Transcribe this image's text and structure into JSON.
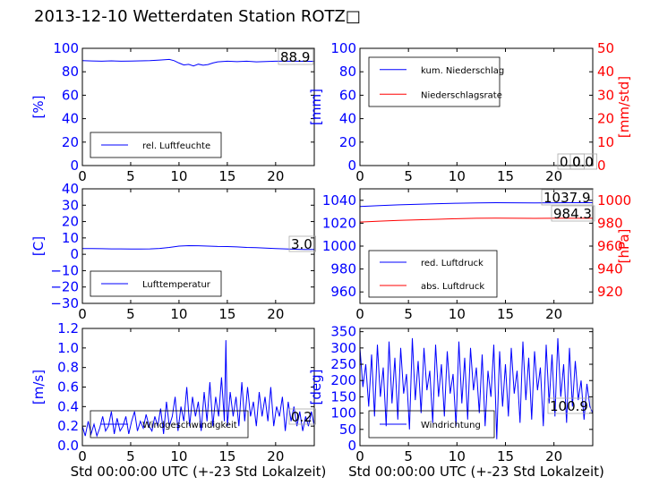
{
  "title": "2013-12-10 Wetterdaten Station ROTZ□",
  "colors": {
    "primary": "#0000ff",
    "secondary": "#ff0000",
    "axis": "#000000"
  },
  "chart_data": [
    {
      "id": "humidity",
      "type": "line",
      "xlim": [
        0,
        24
      ],
      "xticks": [
        0,
        5,
        10,
        15,
        20
      ],
      "ylim": [
        0,
        100
      ],
      "yticks": [
        0,
        20,
        40,
        60,
        80,
        100
      ],
      "ylabel": "[%]",
      "xlabel": "",
      "legend_position": "lower-left",
      "annotations": [
        {
          "text": "88.9",
          "y": 88.9
        }
      ],
      "series": [
        {
          "name": "rel. Luftfeuchte",
          "axis": "left",
          "color": "#0000ff",
          "x": [
            0,
            1,
            2,
            3,
            4,
            5,
            6,
            7,
            8,
            9,
            9.5,
            10,
            10.5,
            11,
            11.5,
            12,
            12.5,
            13,
            13.5,
            14,
            15,
            16,
            17,
            18,
            19,
            20,
            21,
            22,
            23,
            24
          ],
          "y": [
            89.5,
            89.2,
            89.0,
            89.3,
            89.0,
            89.1,
            89.3,
            89.5,
            90.0,
            90.5,
            89.5,
            87.5,
            85.8,
            86.3,
            85.0,
            86.5,
            85.6,
            86.2,
            87.5,
            88.5,
            89.0,
            88.6,
            89.0,
            88.5,
            88.8,
            89.0,
            89.0,
            89.0,
            88.9,
            88.9
          ]
        }
      ]
    },
    {
      "id": "precipitation",
      "type": "line",
      "xlim": [
        0,
        24
      ],
      "xticks": [
        0,
        5,
        10,
        15,
        20
      ],
      "ylim": [
        0,
        100
      ],
      "yticks": [
        0,
        20,
        40,
        60,
        80,
        100
      ],
      "ylabel": "[mm]",
      "y2lim": [
        0,
        50
      ],
      "y2ticks": [
        0,
        10,
        20,
        30,
        40,
        50
      ],
      "y2label": "[mm/std]",
      "legend_position": "upper-left",
      "annotations": [
        {
          "text": "0.0",
          "y": 0
        },
        {
          "text": "0.0",
          "y": 0
        }
      ],
      "series": [
        {
          "name": "kum. Niederschlag",
          "axis": "left",
          "color": "#0000ff",
          "x": [
            0,
            24
          ],
          "y": [
            0,
            0
          ]
        },
        {
          "name": "Niederschlagsrate",
          "axis": "right",
          "color": "#ff0000",
          "x": [
            0,
            24
          ],
          "y": [
            0,
            0
          ]
        }
      ]
    },
    {
      "id": "temperature",
      "type": "line",
      "xlim": [
        0,
        24
      ],
      "xticks": [
        0,
        5,
        10,
        15,
        20
      ],
      "ylim": [
        -30,
        40
      ],
      "yticks": [
        -30,
        -20,
        -10,
        0,
        10,
        20,
        30,
        40
      ],
      "ylabel": "[C]",
      "legend_position": "lower-left",
      "annotations": [
        {
          "text": "3.0",
          "y": 3.0
        }
      ],
      "series": [
        {
          "name": "Lufttemperatur",
          "axis": "left",
          "color": "#0000ff",
          "x": [
            0,
            1,
            2,
            3,
            4,
            5,
            6,
            7,
            8,
            9,
            10,
            11,
            12,
            13,
            14,
            15,
            16,
            17,
            18,
            19,
            20,
            21,
            22,
            23,
            24
          ],
          "y": [
            3.5,
            3.5,
            3.4,
            3.3,
            3.3,
            3.2,
            3.2,
            3.3,
            3.6,
            4.2,
            5.0,
            5.3,
            5.2,
            5.0,
            4.8,
            4.7,
            4.5,
            4.2,
            4.0,
            3.8,
            3.5,
            3.3,
            3.1,
            3.0,
            3.0
          ]
        }
      ]
    },
    {
      "id": "pressure",
      "type": "line",
      "xlim": [
        0,
        24
      ],
      "xticks": [
        0,
        5,
        10,
        15,
        20
      ],
      "ylim": [
        950,
        1050
      ],
      "yticks": [
        960,
        980,
        1000,
        1020,
        1040
      ],
      "ylabel": "",
      "y2lim": [
        910,
        1010
      ],
      "y2ticks": [
        920,
        940,
        960,
        980,
        1000
      ],
      "y2label": "[hPa]",
      "legend_position": "lower-left",
      "annotations": [
        {
          "text": "1037.9",
          "y": 1037.9,
          "axis": "left"
        },
        {
          "text": "984.3",
          "y": 984.3,
          "axis": "right"
        }
      ],
      "series": [
        {
          "name": "red. Luftdruck",
          "axis": "left",
          "color": "#0000ff",
          "x": [
            0,
            2,
            4,
            6,
            8,
            10,
            12,
            14,
            16,
            18,
            20,
            22,
            24
          ],
          "y": [
            1034.5,
            1035.3,
            1036.0,
            1036.6,
            1037.0,
            1037.4,
            1037.7,
            1037.9,
            1037.8,
            1037.7,
            1037.8,
            1037.9,
            1037.9
          ]
        },
        {
          "name": "abs. Luftdruck",
          "axis": "right",
          "color": "#ff0000",
          "x": [
            0,
            2,
            4,
            6,
            8,
            10,
            12,
            14,
            16,
            18,
            20,
            22,
            24
          ],
          "y": [
            981.0,
            981.8,
            982.4,
            983.0,
            983.4,
            983.9,
            984.3,
            984.4,
            984.3,
            984.2,
            984.3,
            984.3,
            984.3
          ]
        }
      ]
    },
    {
      "id": "wind-speed",
      "type": "line",
      "xlim": [
        0,
        24
      ],
      "xticks": [
        0,
        5,
        10,
        15,
        20
      ],
      "ylim": [
        0,
        1.2
      ],
      "yticks": [
        0.0,
        0.2,
        0.4,
        0.6,
        0.8,
        1.0,
        1.2
      ],
      "ylabel": "[m/s]",
      "xlabel": "Std 00:00:00 UTC (+-23 Std Lokalzeit)",
      "legend_position": "lower-left",
      "annotations": [
        {
          "text": "0.2",
          "y": 0.2
        }
      ],
      "series": [
        {
          "name": "Windgeschwindigkeit",
          "axis": "left",
          "color": "#0000ff",
          "x": [
            0,
            0.3,
            0.6,
            0.9,
            1.2,
            1.5,
            1.8,
            2.1,
            2.4,
            2.7,
            3.0,
            3.3,
            3.6,
            3.9,
            4.2,
            4.5,
            4.8,
            5.1,
            5.4,
            5.7,
            6.0,
            6.3,
            6.6,
            6.9,
            7.2,
            7.5,
            7.8,
            8.1,
            8.4,
            8.7,
            9.0,
            9.3,
            9.6,
            9.9,
            10.2,
            10.5,
            10.8,
            11.1,
            11.4,
            11.7,
            12.0,
            12.3,
            12.6,
            12.9,
            13.2,
            13.5,
            13.8,
            14.1,
            14.4,
            14.7,
            14.85,
            15.0,
            15.3,
            15.6,
            15.9,
            16.2,
            16.5,
            16.8,
            17.1,
            17.4,
            17.7,
            18.0,
            18.3,
            18.6,
            18.9,
            19.2,
            19.5,
            19.8,
            20.1,
            20.4,
            20.7,
            21.0,
            21.3,
            21.6,
            21.9,
            22.2,
            22.5,
            22.8,
            23.1,
            23.4,
            23.7,
            24.0
          ],
          "y": [
            0.2,
            0.1,
            0.25,
            0.12,
            0.22,
            0.1,
            0.18,
            0.3,
            0.15,
            0.2,
            0.35,
            0.12,
            0.28,
            0.15,
            0.2,
            0.3,
            0.12,
            0.25,
            0.35,
            0.15,
            0.25,
            0.18,
            0.32,
            0.2,
            0.15,
            0.3,
            0.2,
            0.38,
            0.12,
            0.45,
            0.2,
            0.3,
            0.5,
            0.15,
            0.4,
            0.25,
            0.6,
            0.2,
            0.5,
            0.3,
            0.45,
            0.15,
            0.55,
            0.25,
            0.65,
            0.2,
            0.5,
            0.3,
            0.7,
            0.25,
            1.08,
            0.2,
            0.55,
            0.3,
            0.5,
            0.2,
            0.65,
            0.25,
            0.6,
            0.3,
            0.45,
            0.2,
            0.55,
            0.3,
            0.5,
            0.25,
            0.6,
            0.2,
            0.4,
            0.3,
            0.5,
            0.15,
            0.45,
            0.25,
            0.4,
            0.2,
            0.35,
            0.15,
            0.3,
            0.2,
            0.35,
            0.2
          ]
        }
      ]
    },
    {
      "id": "wind-direction",
      "type": "line",
      "xlim": [
        0,
        24
      ],
      "xticks": [
        0,
        5,
        10,
        15,
        20
      ],
      "ylim": [
        0,
        360
      ],
      "yticks": [
        0,
        50,
        100,
        150,
        200,
        250,
        300,
        350
      ],
      "ylabel": "[deg]",
      "xlabel": "Std 00:00:00 UTC (+-23 Std Lokalzeit)",
      "legend_position": "lower-left",
      "annotations": [
        {
          "text": "100.9",
          "y": 100.9
        }
      ],
      "series": [
        {
          "name": "Windrichtung",
          "axis": "left",
          "color": "#0000ff",
          "x": [
            0,
            0.3,
            0.6,
            0.9,
            1.2,
            1.5,
            1.8,
            2.1,
            2.4,
            2.7,
            3.0,
            3.3,
            3.6,
            3.9,
            4.2,
            4.5,
            4.8,
            5.1,
            5.4,
            5.7,
            6.0,
            6.3,
            6.6,
            6.9,
            7.2,
            7.5,
            7.8,
            8.1,
            8.4,
            8.7,
            9.0,
            9.3,
            9.6,
            9.9,
            10.2,
            10.5,
            10.8,
            11.1,
            11.4,
            11.7,
            12.0,
            12.3,
            12.6,
            12.9,
            13.2,
            13.5,
            13.8,
            14.1,
            14.4,
            14.7,
            15.0,
            15.3,
            15.6,
            15.9,
            16.2,
            16.5,
            16.8,
            17.1,
            17.4,
            17.7,
            18.0,
            18.3,
            18.6,
            18.9,
            19.2,
            19.5,
            19.8,
            20.1,
            20.4,
            20.7,
            21.0,
            21.3,
            21.6,
            21.9,
            22.2,
            22.5,
            22.8,
            23.1,
            23.4,
            23.7,
            24.0
          ],
          "y": [
            300,
            180,
            250,
            120,
            280,
            90,
            310,
            150,
            240,
            60,
            320,
            130,
            270,
            80,
            300,
            160,
            220,
            50,
            330,
            140,
            260,
            100,
            300,
            170,
            230,
            70,
            310,
            150,
            250,
            90,
            290,
            160,
            220,
            60,
            320,
            130,
            270,
            80,
            300,
            170,
            240,
            100,
            280,
            60,
            230,
            150,
            310,
            20,
            290,
            120,
            250,
            90,
            300,
            160,
            230,
            70,
            320,
            140,
            270,
            80,
            290,
            170,
            240,
            60,
            310,
            130,
            280,
            90,
            330,
            150,
            250,
            70,
            300,
            120,
            260,
            140,
            200,
            80,
            190,
            120,
            100.9
          ]
        }
      ]
    }
  ]
}
